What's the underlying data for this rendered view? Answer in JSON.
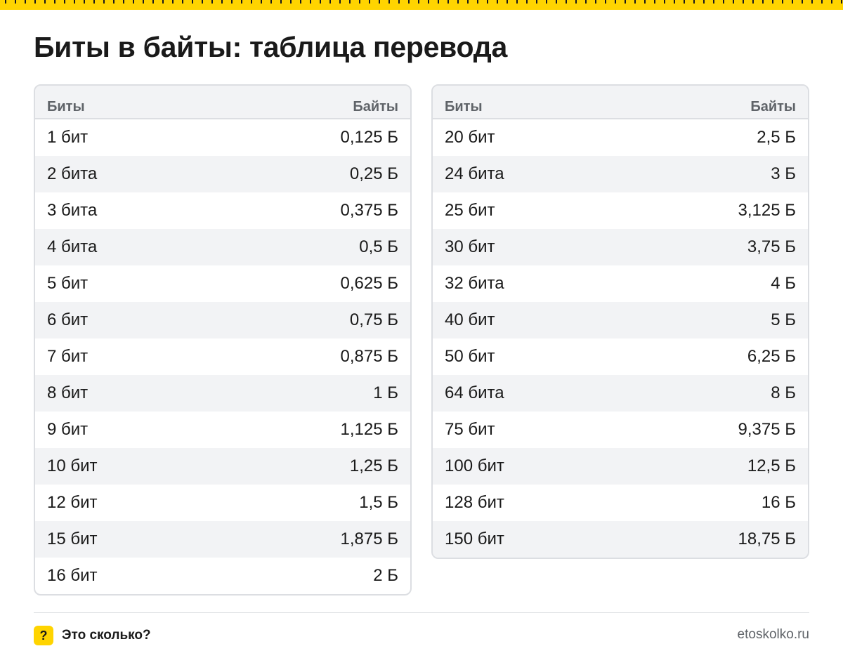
{
  "title": "Биты в байты: таблица перевода",
  "tables": [
    {
      "headers": {
        "bits": "Биты",
        "bytes": "Байты"
      },
      "rows": [
        {
          "bits": "1 бит",
          "bytes": "0,125 Б"
        },
        {
          "bits": "2 бита",
          "bytes": "0,25 Б"
        },
        {
          "bits": "3 бита",
          "bytes": "0,375 Б"
        },
        {
          "bits": "4 бита",
          "bytes": "0,5 Б"
        },
        {
          "bits": "5 бит",
          "bytes": "0,625 Б"
        },
        {
          "bits": "6 бит",
          "bytes": "0,75 Б"
        },
        {
          "bits": "7 бит",
          "bytes": "0,875 Б"
        },
        {
          "bits": "8 бит",
          "bytes": "1 Б"
        },
        {
          "bits": "9 бит",
          "bytes": "1,125 Б"
        },
        {
          "bits": "10 бит",
          "bytes": "1,25 Б"
        },
        {
          "bits": "12 бит",
          "bytes": "1,5 Б"
        },
        {
          "bits": "15 бит",
          "bytes": "1,875 Б"
        },
        {
          "bits": "16 бит",
          "bytes": "2 Б"
        }
      ]
    },
    {
      "headers": {
        "bits": "Биты",
        "bytes": "Байты"
      },
      "rows": [
        {
          "bits": "20 бит",
          "bytes": "2,5 Б"
        },
        {
          "bits": "24 бита",
          "bytes": "3 Б"
        },
        {
          "bits": "25 бит",
          "bytes": "3,125 Б"
        },
        {
          "bits": "30 бит",
          "bytes": "3,75 Б"
        },
        {
          "bits": "32 бита",
          "bytes": "4 Б"
        },
        {
          "bits": "40 бит",
          "bytes": "5 Б"
        },
        {
          "bits": "50 бит",
          "bytes": "6,25 Б"
        },
        {
          "bits": "64 бита",
          "bytes": "8 Б"
        },
        {
          "bits": "75 бит",
          "bytes": "9,375 Б"
        },
        {
          "bits": "100 бит",
          "bytes": "12,5 Б"
        },
        {
          "bits": "128 бит",
          "bytes": "16 Б"
        },
        {
          "bits": "150 бит",
          "bytes": "18,75 Б"
        }
      ]
    }
  ],
  "footer": {
    "icon": "question-icon",
    "icon_glyph": "?",
    "brand": "Это сколько?",
    "site": "etoskolko.ru"
  },
  "colors": {
    "accent": "#ffd400",
    "header_bg": "#f2f3f5",
    "border": "#dcdee2",
    "muted_text": "#5f6368"
  }
}
